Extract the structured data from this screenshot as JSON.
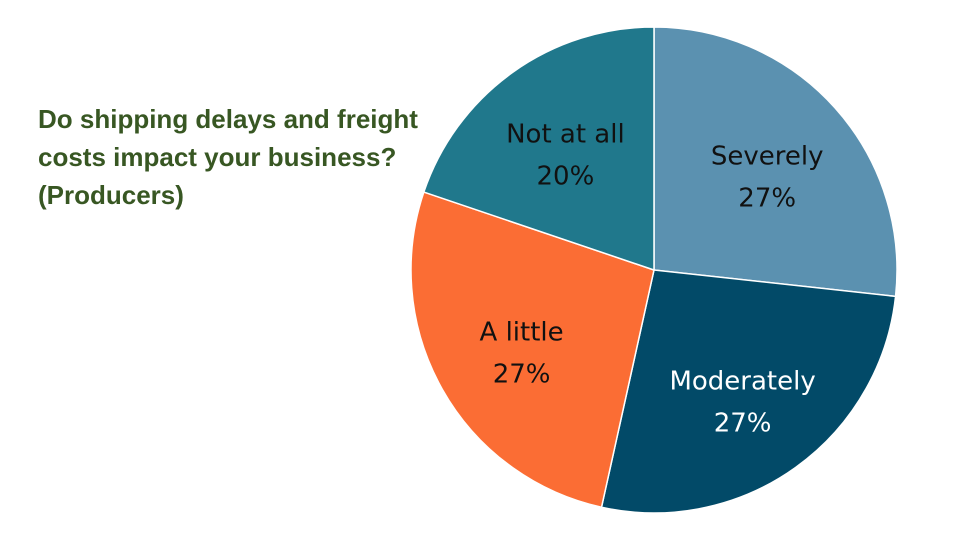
{
  "chart_data": {
    "type": "pie",
    "title": "Do shipping delays and freight costs impact your business? (Producers)",
    "slices": [
      {
        "label": "Severely",
        "value": 27,
        "display": "27%",
        "color": "#5b91b0",
        "text_color": "#111111"
      },
      {
        "label": "Moderately",
        "value": 27,
        "display": "27%",
        "color": "#024a68",
        "text_color": "#ffffff"
      },
      {
        "label": "A little",
        "value": 27,
        "display": "27%",
        "color": "#fb6d34",
        "text_color": "#111111"
      },
      {
        "label": "Not at all",
        "value": 20,
        "display": "20%",
        "color": "#20788c",
        "text_color": "#111111"
      }
    ],
    "legend": "none"
  },
  "colors": {
    "title": "#385723",
    "background": "#ffffff"
  }
}
